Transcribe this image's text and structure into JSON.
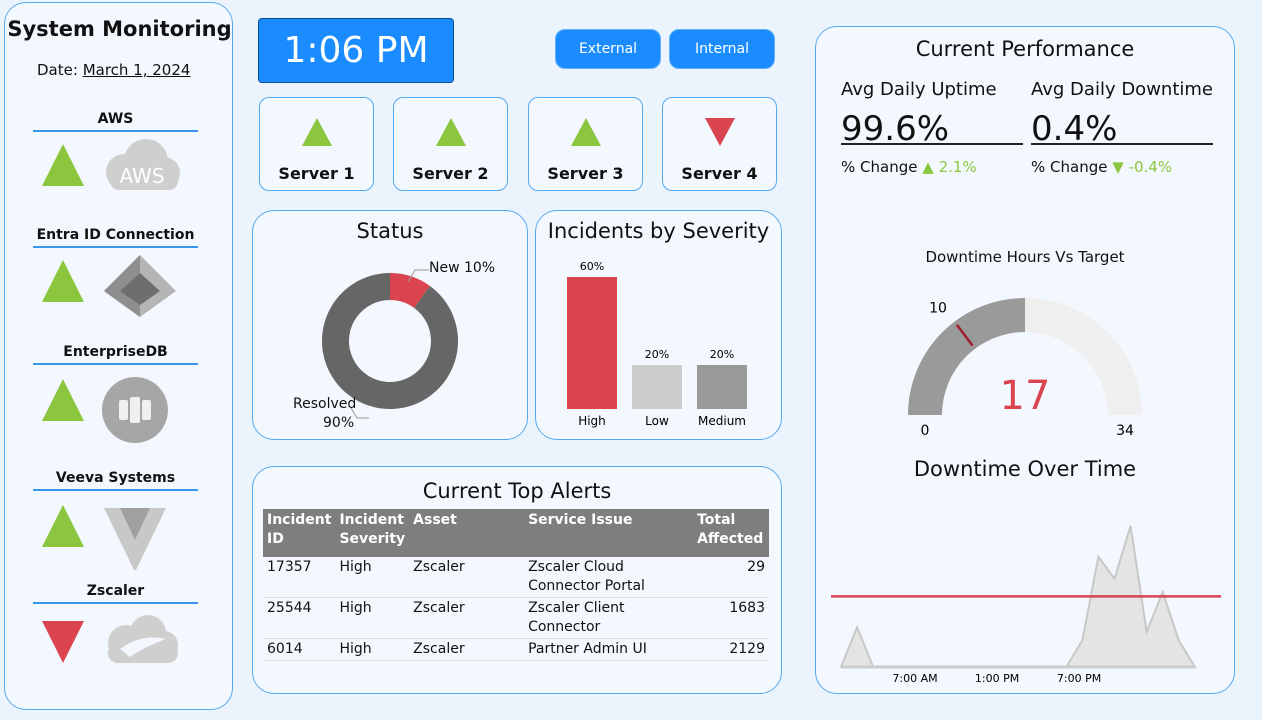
{
  "sidebar": {
    "title": "System Monitoring",
    "date_label": "Date:",
    "date_value": "March 1, 2024",
    "systems": [
      {
        "name": "AWS",
        "status": "up",
        "logo": "aws-cloud-icon",
        "logo_text": "AWS"
      },
      {
        "name": "Entra ID Connection",
        "status": "up",
        "logo": "entra-id-icon"
      },
      {
        "name": "EnterpriseDB",
        "status": "up",
        "logo": "enterprisedb-icon"
      },
      {
        "name": "Veeva Systems",
        "status": "up",
        "logo": "veeva-icon"
      },
      {
        "name": "Zscaler",
        "status": "down",
        "logo": "zscaler-icon"
      }
    ]
  },
  "clock": "1:06 PM",
  "buttons": {
    "external": "External",
    "internal": "Internal"
  },
  "servers": [
    {
      "label": "Server 1",
      "status": "up"
    },
    {
      "label": "Server 2",
      "status": "up"
    },
    {
      "label": "Server 3",
      "status": "up"
    },
    {
      "label": "Server 4",
      "status": "down"
    }
  ],
  "colors": {
    "up": "#8cc63f",
    "down": "#d9444f",
    "accent": "#1a8cff",
    "gray": "#666666"
  },
  "status_chart": {
    "title": "Status",
    "new_label": "New 10%",
    "resolved_label": "Resolved",
    "resolved_pct": "90%"
  },
  "severity_chart": {
    "title": "Incidents by Severity"
  },
  "alerts": {
    "title": "Current Top Alerts",
    "columns": [
      "Incident ID",
      "Incident Severity",
      "Asset",
      "Service Issue",
      "Total Affected"
    ],
    "rows": [
      [
        "17357",
        "High",
        "Zscaler",
        "Zscaler Cloud Connector Portal",
        "29"
      ],
      [
        "25544",
        "High",
        "Zscaler",
        "Zscaler Client Connector",
        "1683"
      ],
      [
        "6014",
        "High",
        "Zscaler",
        "Partner Admin UI",
        "2129"
      ]
    ]
  },
  "performance": {
    "title": "Current Performance",
    "uptime_label": "Avg Daily Uptime",
    "uptime_value": "99.6%",
    "uptime_change_label": "% Change",
    "uptime_change": "2.1%",
    "downtime_label": "Avg Daily Downtime",
    "downtime_value": "0.4%",
    "downtime_change_label": "% Change",
    "downtime_change": "-0.4%",
    "gauge_title": "Downtime Hours Vs Target",
    "timeline_title": "Downtime Over Time"
  },
  "chart_data": [
    {
      "type": "pie",
      "title": "Status",
      "categories": [
        "New",
        "Resolved"
      ],
      "values": [
        10,
        90
      ],
      "labels": [
        "New 10%",
        "Resolved 90%"
      ],
      "colors": [
        "#d9444f",
        "#666666"
      ]
    },
    {
      "type": "bar",
      "title": "Incidents by Severity",
      "categories": [
        "High",
        "Low",
        "Medium"
      ],
      "values": [
        60,
        20,
        20
      ],
      "data_labels": [
        "60%",
        "20%",
        "20%"
      ],
      "colors": [
        "#d9444f",
        "#cccccc",
        "#999999"
      ],
      "ylim": [
        0,
        60
      ]
    },
    {
      "type": "gauge",
      "title": "Downtime Hours Vs Target",
      "value": 17,
      "target": 10,
      "min": 0,
      "max": 34,
      "min_label": "0",
      "max_label": "34",
      "target_label": "10",
      "value_label": "17"
    },
    {
      "type": "area",
      "title": "Downtime Over Time",
      "x_ticks": [
        "7:00 AM",
        "1:00 PM",
        "7:00 PM"
      ],
      "x": [
        1,
        2,
        3,
        4,
        5,
        6,
        7,
        8,
        9,
        10,
        11,
        12,
        13,
        14,
        15,
        16,
        17,
        18,
        19,
        20,
        21,
        22,
        23
      ],
      "values": [
        0,
        0.45,
        0,
        0,
        0,
        0,
        0,
        0,
        0,
        0,
        0,
        0,
        0,
        0,
        0,
        0.3,
        1.25,
        1.0,
        1.6,
        0.4,
        0.85,
        0.3,
        0
      ],
      "target_line": 0.8,
      "xlim": [
        1,
        24
      ],
      "ylim": [
        0,
        1.7
      ]
    }
  ]
}
